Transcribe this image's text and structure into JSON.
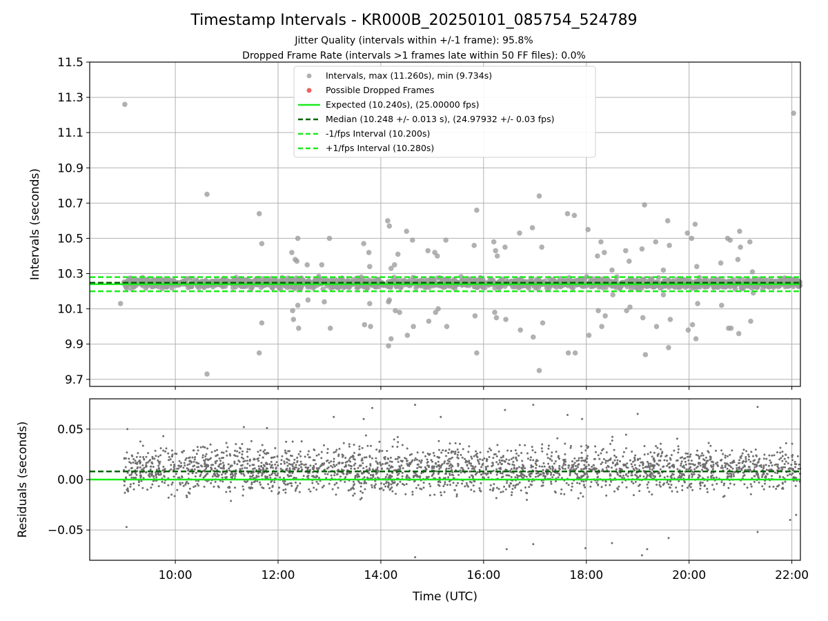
{
  "figure": {
    "title": "Timestamp Intervals - KR000B_20250101_085754_524789",
    "subtitle_line1": "Jitter Quality (intervals within +/-1 frame): 95.8%",
    "subtitle_line2": "Dropped Frame Rate (intervals >1 frames late within 50 FF files): 0.0%"
  },
  "colors": {
    "interval_points": "#9e9e9e",
    "dropped_frames": "#f06060",
    "expected_line": "#1aeb1a",
    "median_line": "#006400",
    "fps_band_lines": "#1aeb1a",
    "residual_points": "#6e6e6e",
    "grid": "#b0b0b0"
  },
  "chart_data": [
    {
      "type": "scatter",
      "title": "",
      "xlabel": "",
      "ylabel": "Intervals (seconds)",
      "xlim": [
        "08:20",
        "22:10"
      ],
      "ylim": [
        9.66,
        11.5
      ],
      "x_ticks": [
        "10:00",
        "12:00",
        "14:00",
        "16:00",
        "18:00",
        "20:00",
        "22:00"
      ],
      "y_ticks": [
        "9.7",
        "9.9",
        "10.1",
        "10.3",
        "10.5",
        "10.7",
        "10.9",
        "11.1",
        "11.3",
        "11.5"
      ],
      "grid": true,
      "legend_position": "upper-center",
      "legend": [
        "Intervals, max (11.260s), min (9.734s)",
        "Possible Dropped Frames",
        "Expected (10.240s), (25.00000 fps)",
        "Median (10.248 +/- 0.013 s), (24.97932 +/- 0.03 fps)",
        "-1/fps Interval (10.200s)",
        "+1/fps Interval (10.280s)"
      ],
      "reference_lines": {
        "expected": 10.24,
        "median": 10.248,
        "minus_one_frame": 10.2,
        "plus_one_frame": 10.28
      },
      "series": [
        {
          "name": "Intervals, max (11.260s), min (9.734s)",
          "x_range": [
            "09:00",
            "22:10"
          ],
          "core_band": [
            10.21,
            10.28
          ],
          "outliers": [
            [
              "08:56",
              10.13
            ],
            [
              "09:01",
              11.26
            ],
            [
              "10:37",
              10.75
            ],
            [
              "10:37",
              9.73
            ],
            [
              "11:38",
              10.64
            ],
            [
              "11:38",
              9.85
            ],
            [
              "11:41",
              10.47
            ],
            [
              "11:41",
              10.02
            ],
            [
              "12:16",
              10.42
            ],
            [
              "12:17",
              10.09
            ],
            [
              "12:18",
              10.04
            ],
            [
              "12:20",
              10.38
            ],
            [
              "12:22",
              10.37
            ],
            [
              "12:23",
              10.12
            ],
            [
              "12:23",
              10.5
            ],
            [
              "12:24",
              9.99
            ],
            [
              "12:34",
              10.35
            ],
            [
              "12:35",
              10.15
            ],
            [
              "12:51",
              10.35
            ],
            [
              "12:54",
              10.14
            ],
            [
              "13:00",
              10.5
            ],
            [
              "13:01",
              9.99
            ],
            [
              "13:40",
              10.47
            ],
            [
              "13:41",
              10.01
            ],
            [
              "13:46",
              10.42
            ],
            [
              "13:47",
              10.13
            ],
            [
              "13:47",
              10.34
            ],
            [
              "13:48",
              10.0
            ],
            [
              "14:08",
              10.6
            ],
            [
              "14:09",
              10.14
            ],
            [
              "14:10",
              10.57
            ],
            [
              "14:10",
              10.15
            ],
            [
              "14:12",
              10.33
            ],
            [
              "14:12",
              9.93
            ],
            [
              "14:09",
              9.89
            ],
            [
              "14:16",
              10.35
            ],
            [
              "14:17",
              10.09
            ],
            [
              "14:20",
              10.41
            ],
            [
              "14:22",
              10.08
            ],
            [
              "14:30",
              10.54
            ],
            [
              "14:31",
              9.95
            ],
            [
              "14:37",
              10.49
            ],
            [
              "14:38",
              10.0
            ],
            [
              "14:55",
              10.43
            ],
            [
              "14:56",
              10.03
            ],
            [
              "15:03",
              10.42
            ],
            [
              "15:04",
              10.08
            ],
            [
              "15:06",
              10.4
            ],
            [
              "15:07",
              10.1
            ],
            [
              "15:16",
              10.49
            ],
            [
              "15:17",
              10.0
            ],
            [
              "15:49",
              10.46
            ],
            [
              "15:50",
              10.06
            ],
            [
              "15:52",
              10.66
            ],
            [
              "15:52",
              9.85
            ],
            [
              "16:12",
              10.48
            ],
            [
              "16:13",
              10.08
            ],
            [
              "16:14",
              10.43
            ],
            [
              "16:15",
              10.05
            ],
            [
              "16:16",
              10.4
            ],
            [
              "16:25",
              10.45
            ],
            [
              "16:26",
              10.04
            ],
            [
              "16:42",
              10.53
            ],
            [
              "16:43",
              9.98
            ],
            [
              "16:57",
              10.56
            ],
            [
              "16:58",
              9.94
            ],
            [
              "17:05",
              10.74
            ],
            [
              "17:05",
              9.75
            ],
            [
              "17:08",
              10.45
            ],
            [
              "17:09",
              10.02
            ],
            [
              "17:38",
              10.64
            ],
            [
              "17:39",
              9.85
            ],
            [
              "17:46",
              10.63
            ],
            [
              "17:47",
              9.85
            ],
            [
              "18:02",
              10.55
            ],
            [
              "18:03",
              9.95
            ],
            [
              "18:13",
              10.4
            ],
            [
              "18:14",
              10.09
            ],
            [
              "18:17",
              10.48
            ],
            [
              "18:18",
              10.0
            ],
            [
              "18:21",
              10.42
            ],
            [
              "18:22",
              10.06
            ],
            [
              "18:30",
              10.32
            ],
            [
              "18:31",
              10.18
            ],
            [
              "18:46",
              10.43
            ],
            [
              "18:47",
              10.09
            ],
            [
              "18:50",
              10.37
            ],
            [
              "18:51",
              10.11
            ],
            [
              "19:05",
              10.44
            ],
            [
              "19:06",
              10.05
            ],
            [
              "19:08",
              10.69
            ],
            [
              "19:09",
              9.84
            ],
            [
              "19:21",
              10.48
            ],
            [
              "19:22",
              10.0
            ],
            [
              "19:30",
              10.32
            ],
            [
              "19:30",
              10.18
            ],
            [
              "19:35",
              10.6
            ],
            [
              "19:36",
              9.88
            ],
            [
              "19:37",
              10.46
            ],
            [
              "19:38",
              10.04
            ],
            [
              "19:58",
              10.53
            ],
            [
              "19:59",
              9.98
            ],
            [
              "20:03",
              10.5
            ],
            [
              "20:04",
              10.01
            ],
            [
              "20:07",
              10.58
            ],
            [
              "20:08",
              9.93
            ],
            [
              "20:09",
              10.34
            ],
            [
              "20:10",
              10.13
            ],
            [
              "20:37",
              10.36
            ],
            [
              "20:38",
              10.12
            ],
            [
              "20:45",
              10.5
            ],
            [
              "20:46",
              9.99
            ],
            [
              "20:48",
              10.49
            ],
            [
              "20:49",
              9.99
            ],
            [
              "20:57",
              10.38
            ],
            [
              "20:58",
              9.96
            ],
            [
              "20:59",
              10.54
            ],
            [
              "21:00",
              10.45
            ],
            [
              "21:11",
              10.48
            ],
            [
              "21:12",
              10.03
            ],
            [
              "21:14",
              10.31
            ],
            [
              "21:15",
              10.19
            ],
            [
              "22:02",
              11.21
            ]
          ]
        },
        {
          "name": "Possible Dropped Frames",
          "points": []
        }
      ]
    },
    {
      "type": "scatter",
      "title": "",
      "xlabel": "Time (UTC)",
      "ylabel": "Residuals (seconds)",
      "xlim": [
        "08:20",
        "22:10"
      ],
      "ylim": [
        -0.08,
        0.08
      ],
      "x_ticks": [
        "10:00",
        "12:00",
        "14:00",
        "16:00",
        "18:00",
        "20:00",
        "22:00"
      ],
      "y_ticks": [
        "−0.05",
        "0.00",
        "0.05"
      ],
      "y_tick_values": [
        -0.05,
        0.0,
        0.05
      ],
      "grid": true,
      "reference_lines": {
        "expected": 0.0,
        "median": 0.008
      },
      "series": [
        {
          "name": "",
          "x_range": [
            "09:00",
            "22:10"
          ],
          "core_band": [
            -0.02,
            0.04
          ],
          "outliers": [
            [
              "09:03",
              -0.047
            ],
            [
              "09:04",
              0.05
            ],
            [
              "11:47",
              0.051
            ],
            [
              "11:20",
              0.052
            ],
            [
              "13:05",
              0.062
            ],
            [
              "13:40",
              0.06
            ],
            [
              "13:50",
              0.071
            ],
            [
              "14:40",
              0.074
            ],
            [
              "14:40",
              -0.077
            ],
            [
              "15:10",
              0.062
            ],
            [
              "16:25",
              0.069
            ],
            [
              "16:27",
              -0.069
            ],
            [
              "16:58",
              0.074
            ],
            [
              "16:58",
              -0.064
            ],
            [
              "17:38",
              0.064
            ],
            [
              "17:55",
              0.06
            ],
            [
              "17:59",
              -0.068
            ],
            [
              "18:30",
              -0.063
            ],
            [
              "19:00",
              0.065
            ],
            [
              "19:05",
              -0.075
            ],
            [
              "19:11",
              -0.069
            ],
            [
              "19:36",
              -0.058
            ],
            [
              "21:20",
              0.072
            ],
            [
              "21:20",
              -0.052
            ],
            [
              "21:58",
              -0.04
            ],
            [
              "22:05",
              -0.035
            ]
          ]
        }
      ]
    }
  ]
}
